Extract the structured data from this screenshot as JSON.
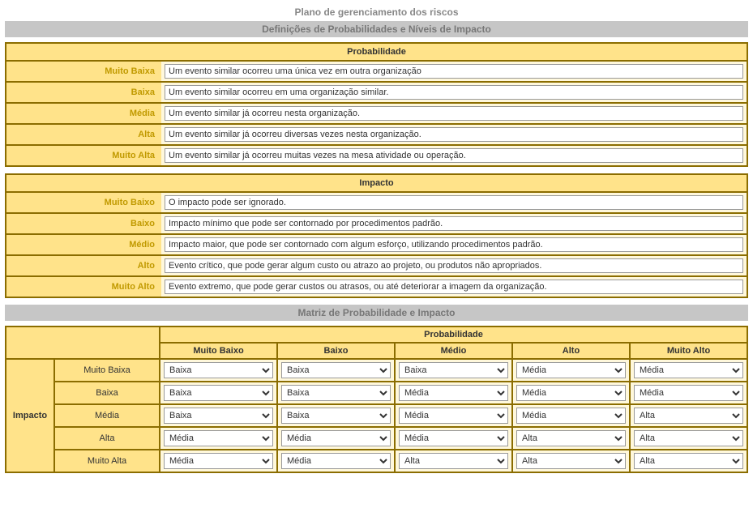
{
  "page_title": "Plano de gerenciamento dos riscos",
  "section1_title": "Definições de Probabilidades e Níveis de Impacto",
  "prob_panel_title": "Probabilidade",
  "impact_panel_title": "Impacto",
  "prob_defs": [
    {
      "label": "Muito Baixa",
      "value": "Um evento similar ocorreu uma única vez em outra organização"
    },
    {
      "label": "Baixa",
      "value": "Um evento similar ocorreu em uma organização similar."
    },
    {
      "label": "Média",
      "value": "Um evento similar já ocorreu nesta organização."
    },
    {
      "label": "Alta",
      "value": "Um evento similar já ocorreu diversas vezes nesta organização."
    },
    {
      "label": "Muito Alta",
      "value": "Um evento similar já ocorreu muitas vezes na mesa atividade ou operação."
    }
  ],
  "impact_defs": [
    {
      "label": "Muito Baixo",
      "value": "O impacto pode ser ignorado."
    },
    {
      "label": "Baixo",
      "value": "Impacto mínimo que pode ser contornado por procedimentos padrão."
    },
    {
      "label": "Médio",
      "value": "Impacto maior, que pode ser contornado com algum esforço, utilizando procedimentos padrão."
    },
    {
      "label": "Alto",
      "value": "Evento crítico, que pode gerar algum custo ou atrazo ao projeto, ou produtos não apropriados."
    },
    {
      "label": "Muito Alto",
      "value": "Evento extremo, que pode gerar custos ou atrasos, ou até deteriorar a imagem da organização."
    }
  ],
  "section2_title": "Matriz de Probabilidade e Impacto",
  "matrix": {
    "super_header": "Probabilidade",
    "row_super": "Impacto",
    "cols": [
      "Muito Baixo",
      "Baixo",
      "Médio",
      "Alto",
      "Muito Alto"
    ],
    "rows": [
      "Muito Baixa",
      "Baixa",
      "Média",
      "Alta",
      "Muito Alta"
    ],
    "options": [
      "Baixa",
      "Média",
      "Alta"
    ],
    "values": [
      [
        "Baixa",
        "Baixa",
        "Baixa",
        "Média",
        "Média"
      ],
      [
        "Baixa",
        "Baixa",
        "Média",
        "Média",
        "Média"
      ],
      [
        "Baixa",
        "Baixa",
        "Média",
        "Média",
        "Alta"
      ],
      [
        "Média",
        "Média",
        "Média",
        "Alta",
        "Alta"
      ],
      [
        "Média",
        "Média",
        "Alta",
        "Alta",
        "Alta"
      ]
    ]
  }
}
